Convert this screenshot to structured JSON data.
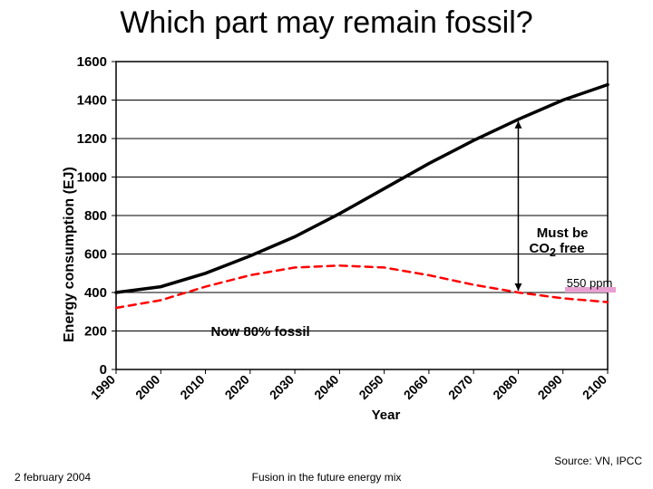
{
  "title": "Which part may remain fossil?",
  "title_fontsize": 34,
  "title_color": "#000000",
  "chart": {
    "type": "line",
    "background_color": "#ffffff",
    "plot_bg": "#ffffff",
    "border_color": "#000000",
    "grid_color": "#000000",
    "x": {
      "ticks": [
        "1990",
        "2000",
        "2010",
        "2020",
        "2030",
        "2040",
        "2050",
        "2060",
        "2070",
        "2080",
        "2090",
        "2100"
      ],
      "label": "Year",
      "label_fontsize": 15,
      "tick_fontsize": 14,
      "rotation": -45
    },
    "y": {
      "min": 0,
      "max": 1600,
      "step": 200,
      "label": "Energy consumption (EJ)",
      "label_fontsize": 16,
      "tick_fontsize": 15
    },
    "series": [
      {
        "name": "total-energy",
        "color": "#000000",
        "width": 3.5,
        "dash": "none",
        "values": [
          400,
          430,
          500,
          590,
          690,
          810,
          940,
          1070,
          1190,
          1300,
          1400,
          1480
        ]
      },
      {
        "name": "fossil-limit-550ppm",
        "color": "#ff0000",
        "width": 2.5,
        "dash": "8 6",
        "values": [
          320,
          360,
          430,
          490,
          530,
          540,
          530,
          490,
          440,
          400,
          370,
          350
        ]
      }
    ],
    "annotations": {
      "must_be_label": "Must be\nCO",
      "must_be_sub": "2",
      "must_be_tail": " free",
      "must_be_fontsize": 15,
      "now_label": "Now 80% fossil",
      "now_fontsize": 15,
      "ppm_label": "550 ppm",
      "ppm_underline_color": "#e7a0d0",
      "arrow_color": "#000000"
    }
  },
  "footer": {
    "date": "2 february 2004",
    "center": "Fusion in the future energy mix",
    "source": "Source: VN, IPCC"
  }
}
